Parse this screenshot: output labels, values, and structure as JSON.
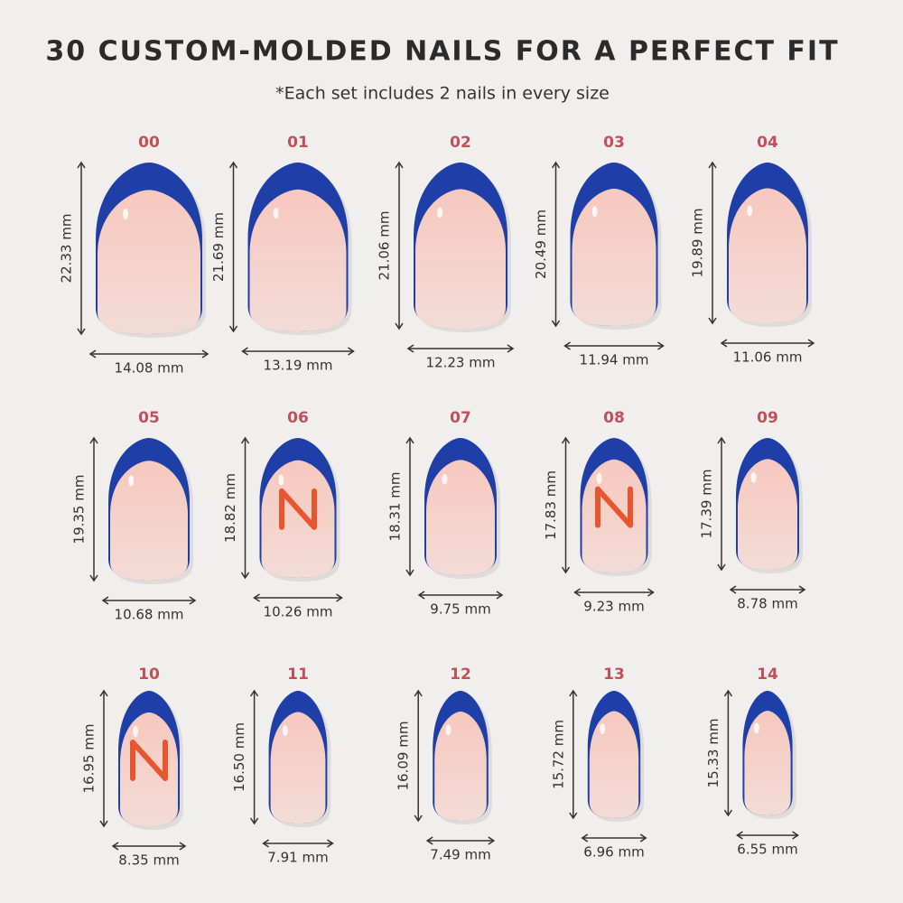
{
  "header": {
    "title": "30 CUSTOM-MOLDED NAILS FOR A PERFECT FIT",
    "subtitle": "*Each set includes 2 nails in every size"
  },
  "nails": [
    {
      "size": "00",
      "length": "22.33 mm",
      "width": "14.08 mm"
    },
    {
      "size": "01",
      "length": "21.69 mm",
      "width": "13.19 mm"
    },
    {
      "size": "02",
      "length": "21.06 mm",
      "width": "12.23 mm"
    },
    {
      "size": "03",
      "length": "20.49 mm",
      "width": "11.94 mm"
    },
    {
      "size": "04",
      "length": "19.89 mm",
      "width": "11.06 mm"
    },
    {
      "size": "05",
      "length": "19.35 mm",
      "width": "10.68 mm"
    },
    {
      "size": "06",
      "length": "18.82 mm",
      "width": "10.26 mm",
      "logo": true
    },
    {
      "size": "07",
      "length": "18.31 mm",
      "width": "9.75 mm"
    },
    {
      "size": "08",
      "length": "17.83 mm",
      "width": "9.23 mm",
      "logo": true
    },
    {
      "size": "09",
      "length": "17.39 mm",
      "width": "8.78 mm"
    },
    {
      "size": "10",
      "length": "16.95 mm",
      "width": "8.35 mm",
      "logo": true
    },
    {
      "size": "11",
      "length": "16.50 mm",
      "width": "7.91 mm"
    },
    {
      "size": "12",
      "length": "16.09 mm",
      "width": "7.49 mm"
    },
    {
      "size": "13",
      "length": "15.72 mm",
      "width": "6.96 mm"
    },
    {
      "size": "14",
      "length": "15.33 mm",
      "width": "6.55 mm"
    }
  ]
}
